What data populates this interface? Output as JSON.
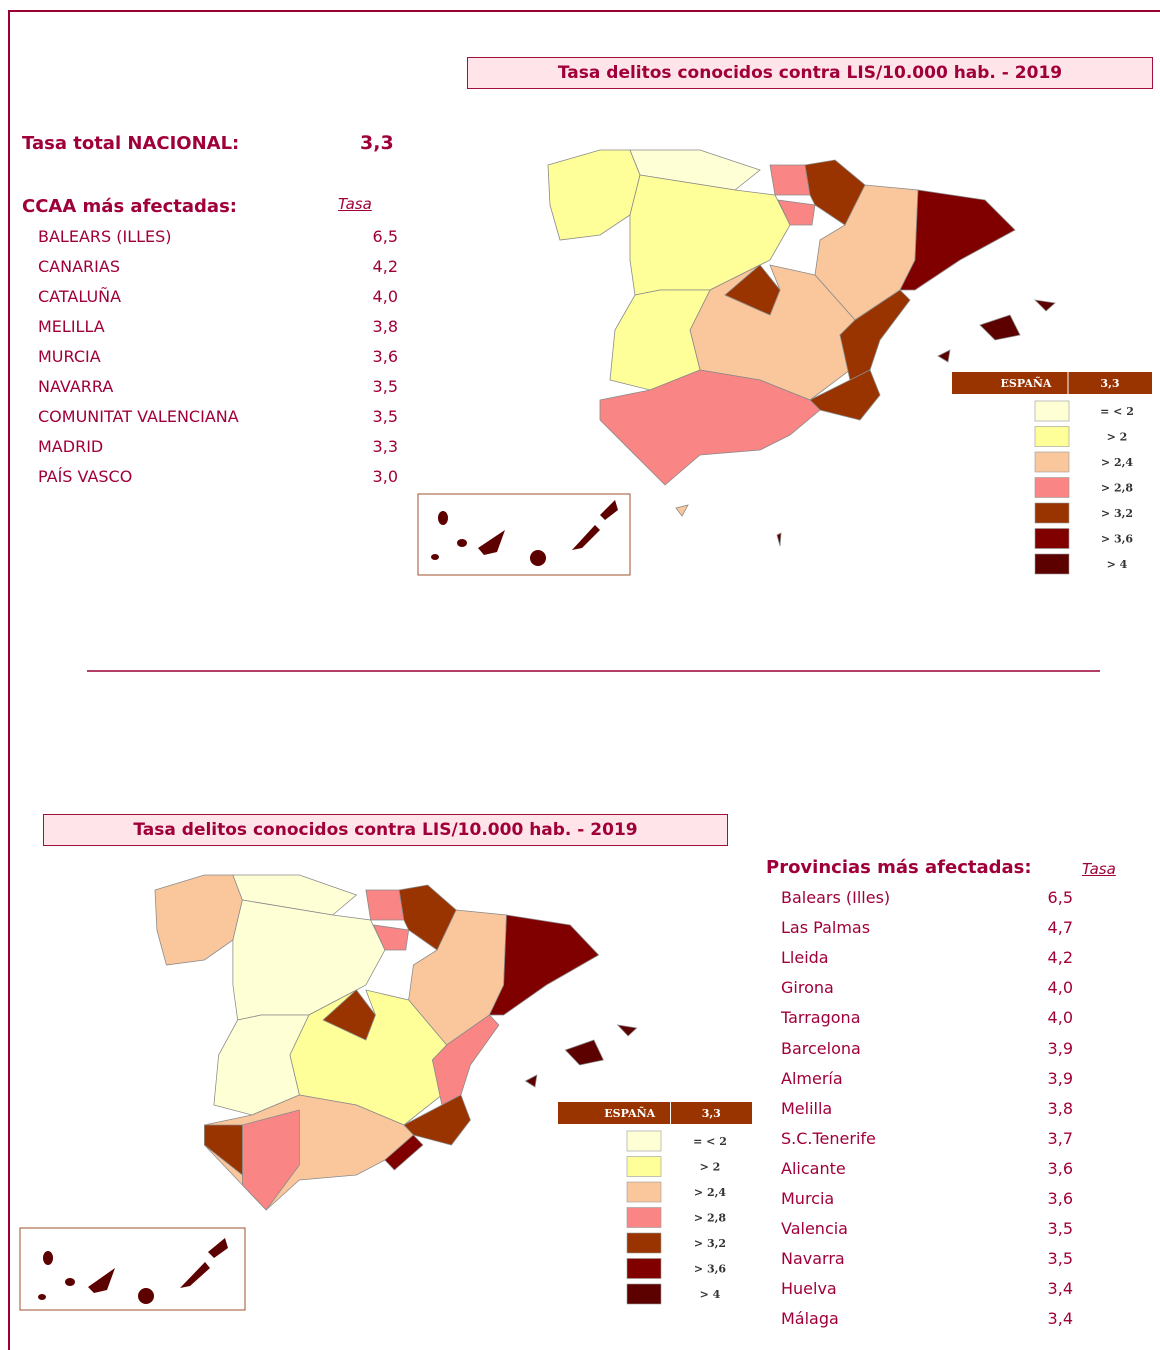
{
  "top": {
    "title": "Tasa delitos conocidos contra LIS/10.000 hab. - 2019",
    "national_label": "Tasa total NACIONAL:",
    "national_value": "3,3",
    "list_header": "CCAA más afectadas:",
    "rate_header": "Tasa",
    "rows": [
      [
        "BALEARS (ILLES)",
        "6,5"
      ],
      [
        "CANARIAS",
        "4,2"
      ],
      [
        "CATALUÑA",
        "4,0"
      ],
      [
        "MELILLA",
        "3,8"
      ],
      [
        "MURCIA",
        "3,6"
      ],
      [
        "NAVARRA",
        "3,5"
      ],
      [
        "COMUNITAT VALENCIANA",
        "3,5"
      ],
      [
        "MADRID",
        "3,3"
      ],
      [
        "PAÍS VASCO",
        "3,0"
      ]
    ]
  },
  "legend": {
    "header": "ESPAÑA",
    "value": "3,3",
    "items": [
      {
        "label": "= < 2",
        "color": "#ffffd6"
      },
      {
        "label": "> 2",
        "color": "#ffff99"
      },
      {
        "label": "> 2,4",
        "color": "#fac79c"
      },
      {
        "label": "> 2,8",
        "color": "#f98585"
      },
      {
        "label": "> 3,2",
        "color": "#993300"
      },
      {
        "label": "> 3,6",
        "color": "#800000"
      },
      {
        "label": "> 4",
        "color": "#5c0000"
      }
    ]
  },
  "bottom": {
    "title": "Tasa delitos conocidos contra LIS/10.000 hab. - 2019",
    "list_header": "Provincias más afectadas:",
    "rate_header": "Tasa",
    "rows": [
      [
        "Balears (Illes)",
        "6,5"
      ],
      [
        "Las Palmas",
        "4,7"
      ],
      [
        "Lleida",
        "4,2"
      ],
      [
        "Girona",
        "4,0"
      ],
      [
        "Tarragona",
        "4,0"
      ],
      [
        "Barcelona",
        "3,9"
      ],
      [
        "Almería",
        "3,9"
      ],
      [
        "Melilla",
        "3,8"
      ],
      [
        "S.C.Tenerife",
        "3,7"
      ],
      [
        "Alicante",
        "3,6"
      ],
      [
        "Murcia",
        "3,6"
      ],
      [
        "Valencia",
        "3,5"
      ],
      [
        "Navarra",
        "3,5"
      ],
      [
        "Huelva",
        "3,4"
      ],
      [
        "Málaga",
        "3,4"
      ]
    ]
  }
}
